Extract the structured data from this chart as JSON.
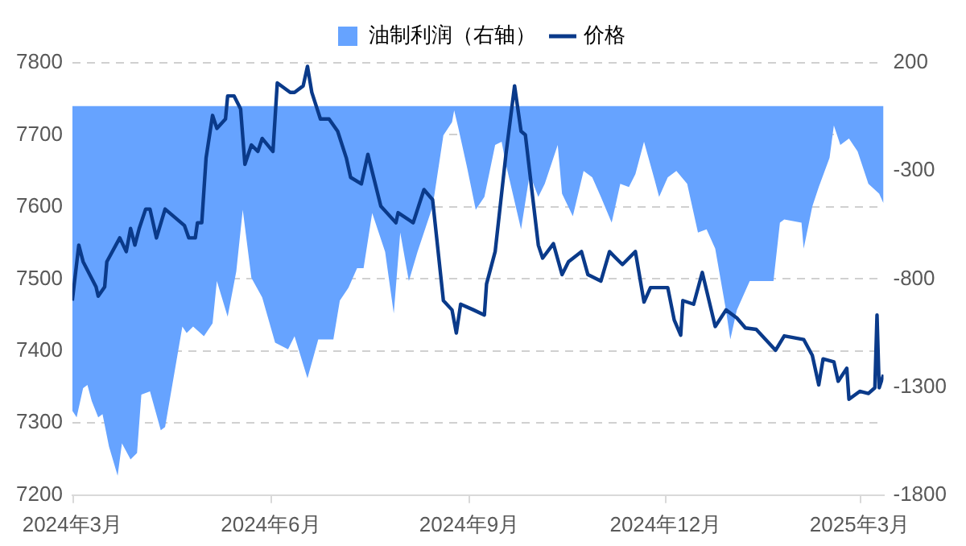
{
  "chart_data": {
    "type": "line",
    "legend": "top",
    "grid": "y",
    "marker": "none",
    "xlim": [
      "2024-03-01",
      "2025-03-12"
    ],
    "xticks": [
      {
        "value": "2024-03-01",
        "label": "2024年3月"
      },
      {
        "value": "2024-06-01",
        "label": "2024年6月"
      },
      {
        "value": "2024-09-01",
        "label": "2024年9月"
      },
      {
        "value": "2024-12-01",
        "label": "2024年12月"
      },
      {
        "value": "2025-03-01",
        "label": "2025年3月"
      }
    ],
    "ylim": [
      7200,
      7800
    ],
    "yticks": [
      7200,
      7300,
      7400,
      7500,
      7600,
      7700,
      7800
    ],
    "y2lim": [
      -1800,
      200
    ],
    "y2ticks": [
      -1800,
      -1300,
      -800,
      -300,
      200
    ],
    "series": [
      {
        "name": "油制利润（右轴）",
        "type": "area",
        "axis": "y2",
        "color": "#66a3ff",
        "x": [
          "2024-03-01",
          "2024-03-03",
          "2024-03-06",
          "2024-03-08",
          "2024-03-10",
          "2024-03-13",
          "2024-03-15",
          "2024-03-18",
          "2024-03-22",
          "2024-03-24",
          "2024-03-28",
          "2024-03-31",
          "2024-04-02",
          "2024-04-06",
          "2024-04-11",
          "2024-04-13",
          "2024-04-21",
          "2024-04-23",
          "2024-04-26",
          "2024-05-01",
          "2024-05-05",
          "2024-05-07",
          "2024-05-12",
          "2024-05-16",
          "2024-05-19",
          "2024-05-23",
          "2024-05-28",
          "2024-06-03",
          "2024-06-09",
          "2024-06-12",
          "2024-06-18",
          "2024-06-23",
          "2024-06-30",
          "2024-07-03",
          "2024-07-07",
          "2024-07-11",
          "2024-07-14",
          "2024-07-18",
          "2024-07-24",
          "2024-07-28",
          "2024-07-31",
          "2024-08-04",
          "2024-08-08",
          "2024-08-15",
          "2024-08-20",
          "2024-08-24",
          "2024-08-25",
          "2024-08-27",
          "2024-08-31",
          "2024-09-04",
          "2024-09-08",
          "2024-09-13",
          "2024-09-16",
          "2024-09-18",
          "2024-09-25",
          "2024-09-29",
          "2024-10-03",
          "2024-10-06",
          "2024-10-12",
          "2024-10-14",
          "2024-10-19",
          "2024-10-24",
          "2024-10-28",
          "2024-11-01",
          "2024-11-06",
          "2024-11-10",
          "2024-11-14",
          "2024-11-17",
          "2024-11-21",
          "2024-11-26",
          "2024-11-28",
          "2024-12-02",
          "2024-12-06",
          "2024-12-11",
          "2024-12-16",
          "2024-12-20",
          "2024-12-24",
          "2024-12-29",
          "2024-12-31",
          "2025-01-03",
          "2025-01-09",
          "2025-01-20",
          "2025-01-23",
          "2025-01-25",
          "2025-02-02",
          "2025-02-03",
          "2025-02-07",
          "2025-02-10",
          "2025-02-15",
          "2025-02-17",
          "2025-02-20",
          "2025-02-24",
          "2025-02-28",
          "2025-03-05",
          "2025-03-10",
          "2025-03-12"
        ],
        "values": [
          -1410,
          -1440,
          -1305,
          -1290,
          -1365,
          -1440,
          -1425,
          -1575,
          -1710,
          -1560,
          -1635,
          -1605,
          -1335,
          -1320,
          -1500,
          -1485,
          -1020,
          -1050,
          -1020,
          -1065,
          -1005,
          -810,
          -975,
          -765,
          -480,
          -795,
          -885,
          -1095,
          -1125,
          -1065,
          -1260,
          -1080,
          -1080,
          -900,
          -840,
          -750,
          -750,
          -495,
          -675,
          -960,
          -585,
          -810,
          -675,
          -465,
          -135,
          -75,
          -20,
          -105,
          -285,
          -480,
          -420,
          -180,
          -165,
          -270,
          -570,
          -315,
          -420,
          -360,
          -180,
          -405,
          -510,
          -300,
          -330,
          -420,
          -540,
          -360,
          -375,
          -315,
          -165,
          -345,
          -420,
          -330,
          -300,
          -360,
          -585,
          -570,
          -660,
          -945,
          -1080,
          -945,
          -810,
          -810,
          -540,
          -525,
          -540,
          -660,
          -465,
          -375,
          -240,
          -90,
          -180,
          -150,
          -210,
          -360,
          -405,
          -450
        ]
      },
      {
        "name": "价格",
        "type": "line",
        "color": "#0a3a8a",
        "x": [
          "2024-03-01",
          "2024-03-04",
          "2024-03-06",
          "2024-03-12",
          "2024-03-13",
          "2024-03-16",
          "2024-03-17",
          "2024-03-23",
          "2024-03-26",
          "2024-03-28",
          "2024-03-30",
          "2024-04-01",
          "2024-04-04",
          "2024-04-06",
          "2024-04-09",
          "2024-04-13",
          "2024-04-22",
          "2024-04-24",
          "2024-04-27",
          "2024-04-28",
          "2024-04-30",
          "2024-05-02",
          "2024-05-05",
          "2024-05-07",
          "2024-05-11",
          "2024-05-12",
          "2024-05-15",
          "2024-05-18",
          "2024-05-20",
          "2024-05-23",
          "2024-05-26",
          "2024-05-28",
          "2024-06-02",
          "2024-06-04",
          "2024-06-10",
          "2024-06-12",
          "2024-06-16",
          "2024-06-18",
          "2024-06-20",
          "2024-06-24",
          "2024-06-28",
          "2024-07-02",
          "2024-07-06",
          "2024-07-08",
          "2024-07-13",
          "2024-07-16",
          "2024-07-22",
          "2024-07-29",
          "2024-07-30",
          "2024-08-06",
          "2024-08-11",
          "2024-08-15",
          "2024-08-20",
          "2024-08-24",
          "2024-08-26",
          "2024-08-28",
          "2024-09-03",
          "2024-09-08",
          "2024-09-09",
          "2024-09-13",
          "2024-09-18",
          "2024-09-22",
          "2024-09-25",
          "2024-09-27",
          "2024-10-03",
          "2024-10-05",
          "2024-10-10",
          "2024-10-14",
          "2024-10-17",
          "2024-10-23",
          "2024-10-26",
          "2024-11-01",
          "2024-11-05",
          "2024-11-11",
          "2024-11-17",
          "2024-11-21",
          "2024-11-24",
          "2024-12-02",
          "2024-12-05",
          "2024-12-08",
          "2024-12-09",
          "2024-12-14",
          "2024-12-18",
          "2024-12-24",
          "2024-12-29",
          "2025-01-03",
          "2025-01-07",
          "2025-01-12",
          "2025-01-21",
          "2025-01-25",
          "2025-02-03",
          "2025-02-07",
          "2025-02-10",
          "2025-02-12",
          "2025-02-17",
          "2025-02-19",
          "2025-02-23",
          "2025-02-24",
          "2025-03-01",
          "2025-03-05",
          "2025-03-08",
          "2025-03-09",
          "2025-03-10",
          "2025-03-12"
        ],
        "values": [
          7470,
          7547,
          7524,
          7489,
          7476,
          7489,
          7524,
          7557,
          7538,
          7570,
          7547,
          7570,
          7597,
          7597,
          7557,
          7597,
          7574,
          7557,
          7557,
          7578,
          7578,
          7668,
          7727,
          7709,
          7722,
          7754,
          7754,
          7736,
          7659,
          7686,
          7677,
          7695,
          7677,
          7772,
          7759,
          7759,
          7768,
          7795,
          7759,
          7722,
          7722,
          7705,
          7668,
          7641,
          7632,
          7673,
          7601,
          7578,
          7592,
          7578,
          7624,
          7610,
          7470,
          7457,
          7425,
          7465,
          7457,
          7450,
          7493,
          7538,
          7673,
          7768,
          7705,
          7700,
          7547,
          7529,
          7549,
          7506,
          7524,
          7538,
          7506,
          7497,
          7538,
          7520,
          7538,
          7468,
          7488,
          7488,
          7443,
          7422,
          7470,
          7465,
          7509,
          7434,
          7457,
          7446,
          7432,
          7430,
          7401,
          7421,
          7416,
          7394,
          7353,
          7389,
          7385,
          7358,
          7376,
          7333,
          7344,
          7341,
          7349,
          7450,
          7349,
          7367
        ]
      }
    ]
  }
}
